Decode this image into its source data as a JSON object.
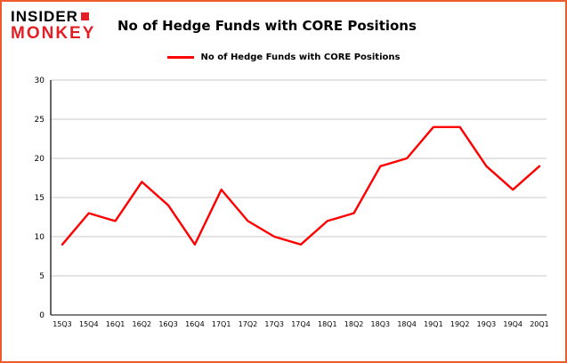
{
  "logo": {
    "line1": "INSIDER",
    "line2": "MONKEY",
    "brand_red": "#e31f26"
  },
  "header": {
    "title": "No of Hedge Funds with CORE Positions"
  },
  "legend": {
    "label": "No of Hedge Funds with CORE Positions",
    "line_color": "#ff0000"
  },
  "frame": {
    "border_color": "#f05b2d"
  },
  "chart_data": {
    "type": "line",
    "title": "No of Hedge Funds with CORE Positions",
    "categories": [
      "15Q3",
      "15Q4",
      "16Q1",
      "16Q2",
      "16Q3",
      "16Q4",
      "17Q1",
      "17Q2",
      "17Q3",
      "17Q4",
      "18Q1",
      "18Q2",
      "18Q3",
      "18Q4",
      "19Q1",
      "19Q2",
      "19Q3",
      "19Q4",
      "20Q1"
    ],
    "series": [
      {
        "name": "No of Hedge Funds with CORE Positions",
        "color": "#ff0000",
        "values": [
          9,
          13,
          12,
          17,
          14,
          9,
          16,
          12,
          10,
          9,
          12,
          13,
          19,
          20,
          24,
          24,
          19,
          16,
          19
        ]
      }
    ],
    "xlabel": "",
    "ylabel": "",
    "ylim": [
      0,
      30
    ],
    "yticks": [
      0,
      5,
      10,
      15,
      20,
      25,
      30
    ],
    "grid": true,
    "gridline_color": "#c8c8c8",
    "axis_color": "#000000",
    "legend_position": "top"
  }
}
